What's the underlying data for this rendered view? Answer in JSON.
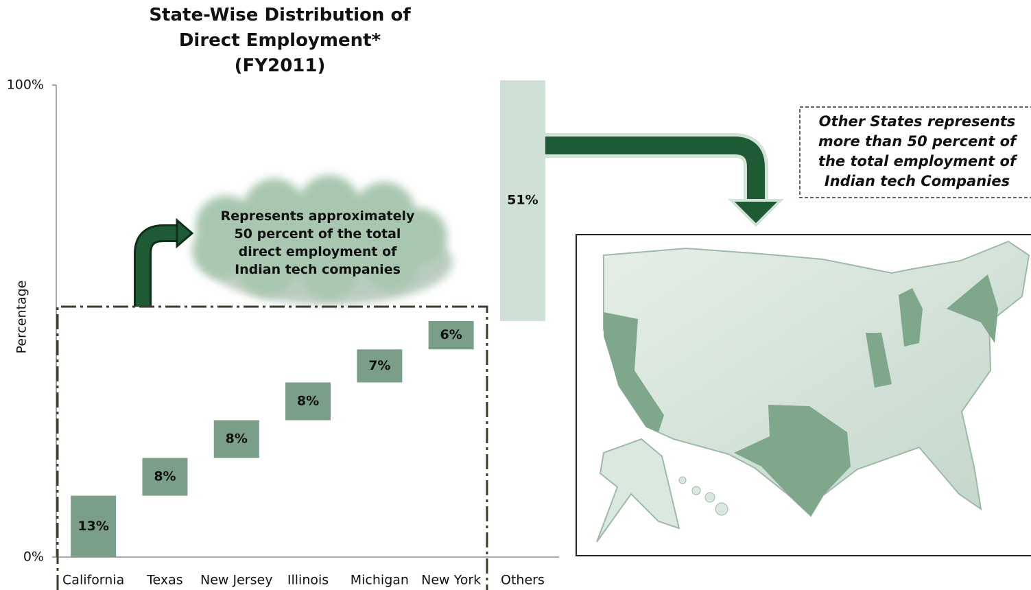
{
  "chart_data": {
    "type": "waterfall",
    "title": "State-Wise Distribution of Direct Employment*",
    "subtitle": "(FY2011)",
    "y_label": "Percentage",
    "categories": [
      "California",
      "Texas",
      "New Jersey",
      "Illinois",
      "Michigan",
      "New York",
      "Others"
    ],
    "values": [
      13,
      8,
      8,
      8,
      7,
      6,
      51
    ],
    "value_labels": [
      "13%",
      "8%",
      "8%",
      "8%",
      "7%",
      "6%",
      "51%"
    ],
    "colors": [
      "#7a9e87",
      "#7a9e87",
      "#7a9e87",
      "#7a9e87",
      "#7a9e87",
      "#7a9e87",
      "#cfe0d6"
    ],
    "ylim": [
      0,
      100
    ],
    "yticks": [
      {
        "value": 0,
        "label": "0%"
      },
      {
        "value": 100,
        "label": "100%"
      }
    ],
    "annotations": [
      "Represents approximately 50 percent of the total direct employment of Indian tech companies",
      "Other States represents more than 50 percent of the total employment of Indian tech Companies"
    ]
  }
}
